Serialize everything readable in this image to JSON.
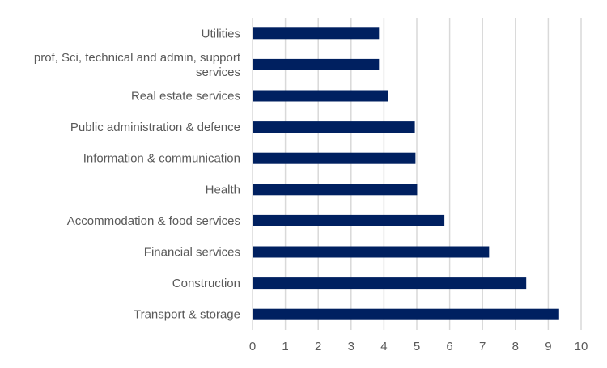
{
  "chart_data": {
    "type": "bar",
    "orientation": "horizontal",
    "title": "",
    "xlabel": "",
    "ylabel": "",
    "categories": [
      "Utilities",
      "prof, Sci, technical and admin, support services",
      "Real estate services",
      "Public administration & defence",
      "Information & communication",
      "Health",
      "Accommodation & food services",
      "Financial services",
      "Construction",
      "Transport & storage"
    ],
    "category_label_lines": [
      [
        "Utilities"
      ],
      [
        "prof, Sci, technical and admin, support",
        "services"
      ],
      [
        "Real estate services"
      ],
      [
        "Public administration & defence"
      ],
      [
        "Information & communication"
      ],
      [
        "Health"
      ],
      [
        "Accommodation & food services"
      ],
      [
        "Financial services"
      ],
      [
        "Construction"
      ],
      [
        "Transport & storage"
      ]
    ],
    "values": [
      3.85,
      3.85,
      4.12,
      4.94,
      4.96,
      5.01,
      5.84,
      7.2,
      8.33,
      9.33
    ],
    "xlim": [
      0,
      10
    ],
    "xticks": [
      "0",
      "1",
      "2",
      "3",
      "4",
      "5",
      "6",
      "7",
      "8",
      "9",
      "10"
    ],
    "grid": "vertical",
    "legend": "none",
    "bar_color": "#002060",
    "grid_color": "#d9d9d9"
  }
}
